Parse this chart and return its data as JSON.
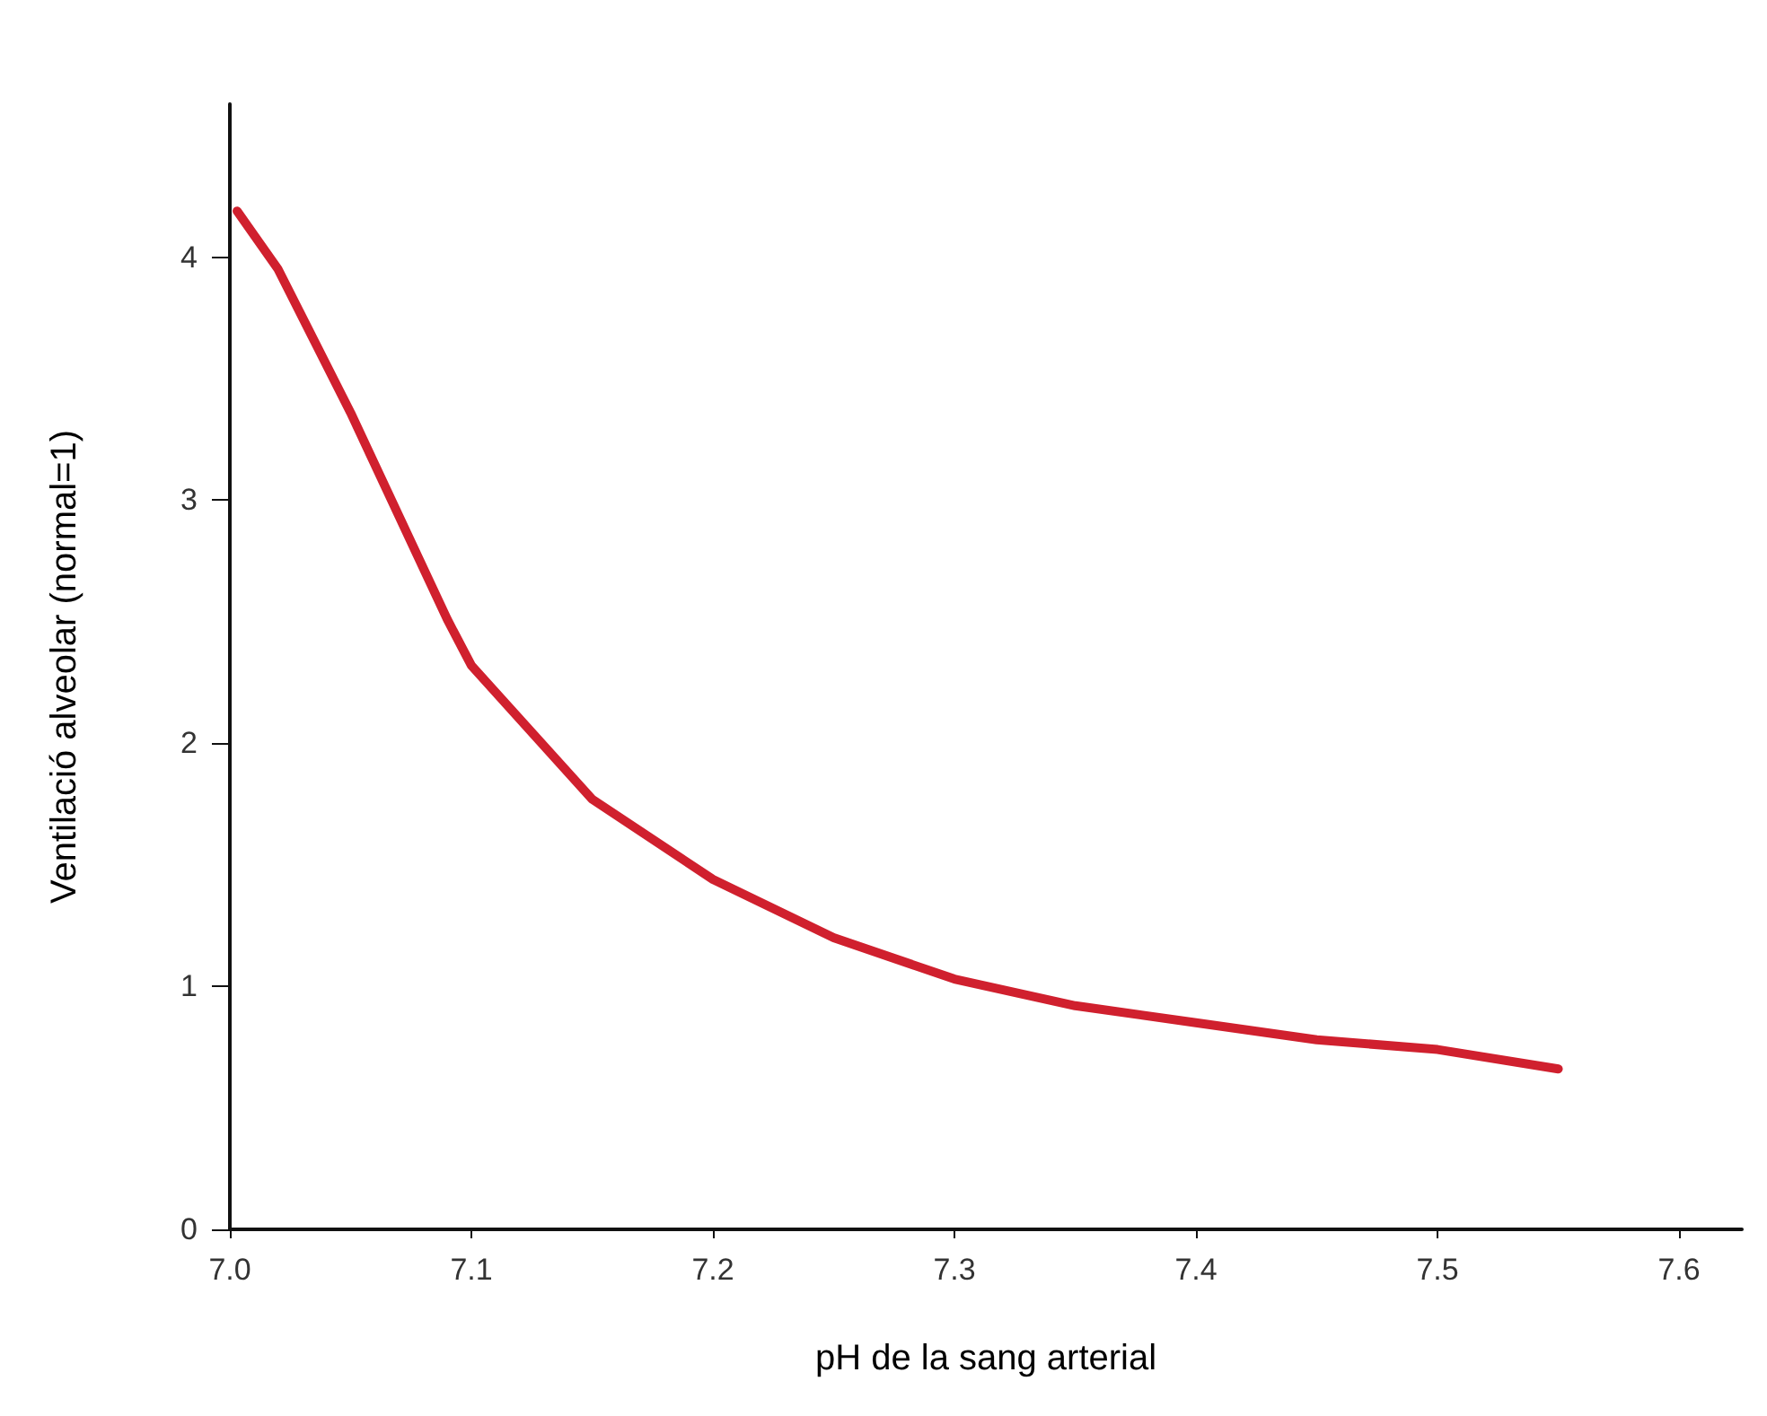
{
  "chart_data": {
    "type": "line",
    "xlabel": "pH de la sang arterial",
    "ylabel": "Ventilació alveolar (normal=1)",
    "x": [
      7.003,
      7.02,
      7.05,
      7.09,
      7.1,
      7.15,
      7.2,
      7.25,
      7.3,
      7.35,
      7.4,
      7.45,
      7.5,
      7.55
    ],
    "series": [
      {
        "color": "#d0202e",
        "values": [
          4.19,
          3.95,
          3.36,
          2.51,
          2.32,
          1.77,
          1.44,
          1.2,
          1.03,
          0.92,
          0.85,
          0.78,
          0.74,
          0.66
        ]
      }
    ],
    "xlim": [
      7.0,
      7.626
    ],
    "ylim": [
      0,
      4.63
    ],
    "xticks": [
      {
        "value": 7.0,
        "label": "7.0"
      },
      7.1,
      7.2,
      7.3,
      7.4,
      7.5,
      7.6
    ],
    "yticks": [
      0,
      1,
      2,
      3,
      4
    ],
    "grid": false,
    "marker": "none",
    "line_style": "solid"
  }
}
